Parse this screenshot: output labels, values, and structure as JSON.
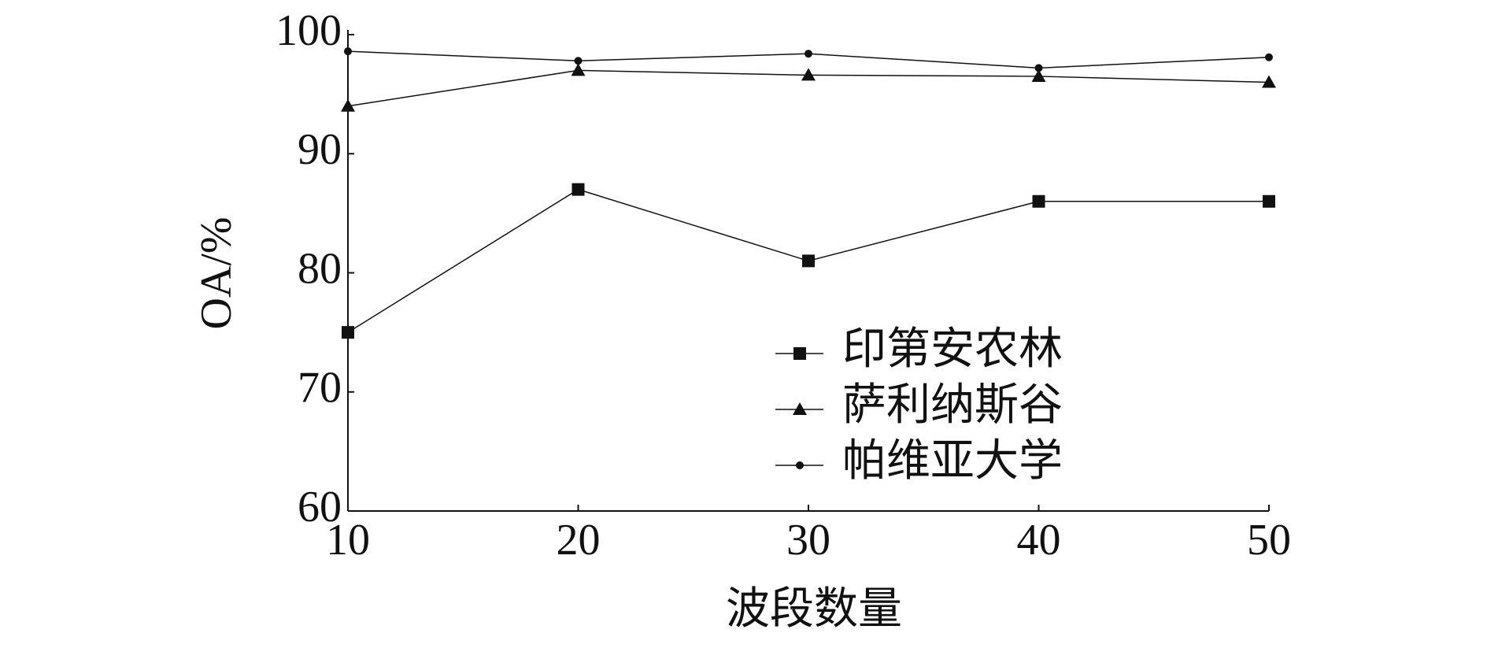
{
  "chart_data": {
    "type": "line",
    "x_label": "波段数量",
    "y_label": "OA/%",
    "x": [
      10,
      20,
      30,
      40,
      50
    ],
    "xlim": [
      10,
      50
    ],
    "xticks": [
      10,
      20,
      30,
      40,
      50
    ],
    "ylim": [
      60,
      100
    ],
    "yticks": [
      60,
      70,
      80,
      90,
      100
    ],
    "series": [
      {
        "name": "印第安农林",
        "color": "#111111",
        "marker": "square",
        "values": [
          75,
          87,
          81,
          86,
          86
        ]
      },
      {
        "name": "萨利纳斯谷",
        "color": "#111111",
        "marker": "triangle",
        "values": [
          94,
          97,
          96.6,
          96.5,
          96
        ]
      },
      {
        "name": "帕维亚大学",
        "color": "#111111",
        "marker": "dot",
        "values": [
          98.6,
          97.8,
          98.4,
          97.2,
          98.1
        ]
      }
    ]
  }
}
